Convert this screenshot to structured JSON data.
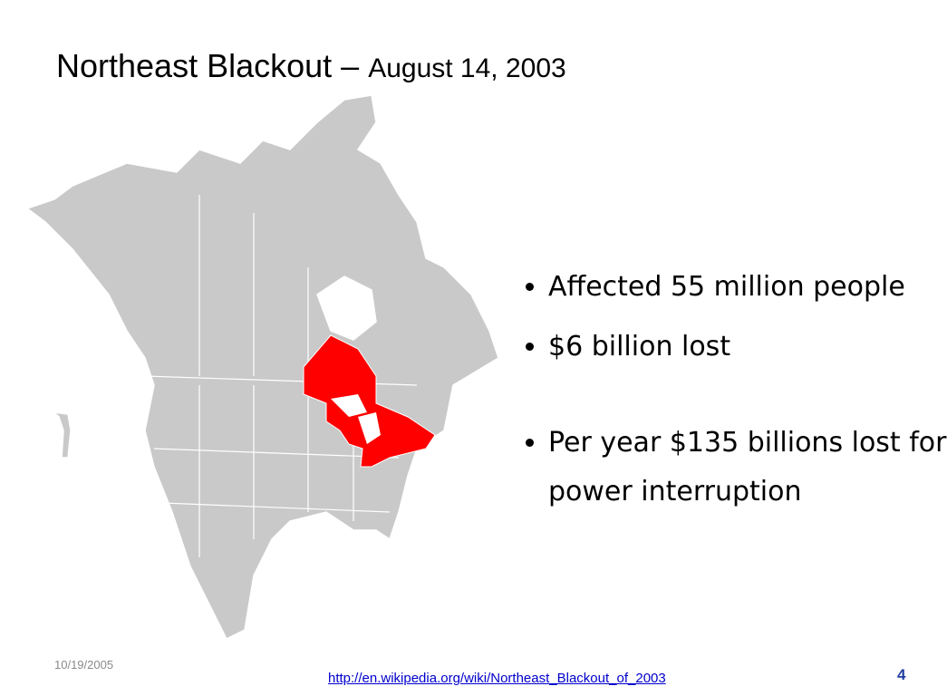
{
  "header": {
    "title": "Northeast Blackout –",
    "subtitle": "August 14, 2003"
  },
  "bullets": [
    "Affected 55 million people",
    "$6 billion lost",
    "Per year $135 billions lost for power interruption"
  ],
  "footer": {
    "date": "10/19/2005",
    "link": "http://en.wikipedia.org/wiki/Northeast_Blackout_of_2003",
    "page": 4
  }
}
